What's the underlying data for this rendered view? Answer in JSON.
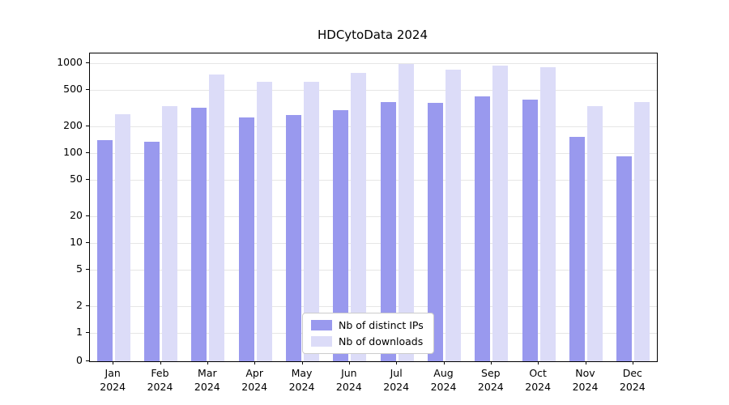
{
  "chart_data": {
    "type": "bar",
    "title": "HDCytoData 2024",
    "scale": "log",
    "grid": true,
    "legend_position": "bottom-center-inside",
    "y_ticks": [
      0,
      1,
      2,
      5,
      10,
      20,
      50,
      100,
      200,
      500,
      1000
    ],
    "ylim": [
      0,
      1000
    ],
    "x_tick_year": "2024",
    "x_tick_months": [
      "Jan",
      "Feb",
      "Mar",
      "Apr",
      "May",
      "Jun",
      "Jul",
      "Aug",
      "Sep",
      "Oct",
      "Nov",
      "Dec"
    ],
    "categories": [
      "Jan 2024",
      "Feb 2024",
      "Mar 2024",
      "Apr 2024",
      "May 2024",
      "Jun 2024",
      "Jul 2024",
      "Aug 2024",
      "Sep 2024",
      "Oct 2024",
      "Nov 2024",
      "Dec 2024"
    ],
    "series": [
      {
        "name": "Nb of distinct IPs",
        "color": "#9999ee",
        "values": [
          140,
          135,
          320,
          250,
          265,
          300,
          370,
          360,
          430,
          390,
          150,
          92
        ]
      },
      {
        "name": "Nb of downloads",
        "color": "#dcdcf8",
        "values": [
          270,
          330,
          750,
          620,
          620,
          780,
          980,
          850,
          940,
          900,
          330,
          370
        ]
      }
    ]
  }
}
